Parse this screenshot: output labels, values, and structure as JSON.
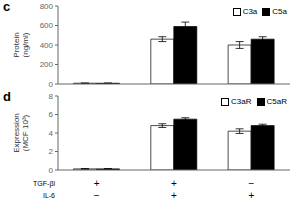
{
  "chart_data": [
    {
      "type": "bar",
      "title": "c",
      "ylabel": "Protein\n(ng/ml)",
      "categories": [
        null,
        null,
        null
      ],
      "series": [
        {
          "name": "C3a",
          "color": "white",
          "edge_color": "black",
          "values": [
            8,
            460,
            400
          ],
          "errors": [
            2,
            25,
            35
          ]
        },
        {
          "name": "C5a",
          "color": "black",
          "edge_color": "black",
          "values": [
            8,
            590,
            460
          ],
          "errors": [
            2,
            45,
            25
          ]
        }
      ],
      "ylim": [
        0,
        800
      ],
      "yticks": [
        0,
        200,
        400,
        600,
        800
      ],
      "legend": "upper right",
      "grid": false
    },
    {
      "type": "bar",
      "title": "d",
      "ylabel": "Expression\n(MCF 10³)",
      "categories": [
        null,
        null,
        null
      ],
      "category_rows": [
        {
          "label": "TGF-βl",
          "values": [
            "+",
            "+",
            "−"
          ]
        },
        {
          "label": "IL-6",
          "values": [
            "−",
            "+",
            "+"
          ]
        }
      ],
      "series": [
        {
          "name": "C3aR",
          "color": "white",
          "edge_color": "black",
          "values": [
            0.12,
            4.8,
            4.2
          ],
          "errors": [
            0.04,
            0.2,
            0.25
          ]
        },
        {
          "name": "C5aR",
          "color": "black",
          "edge_color": "black",
          "values": [
            0.12,
            5.5,
            4.8
          ],
          "errors": [
            0.04,
            0.15,
            0.15
          ]
        }
      ],
      "ylim": [
        0,
        8
      ],
      "yticks": [
        0,
        2,
        4,
        6,
        8
      ],
      "legend": "upper right",
      "grid": false
    }
  ]
}
